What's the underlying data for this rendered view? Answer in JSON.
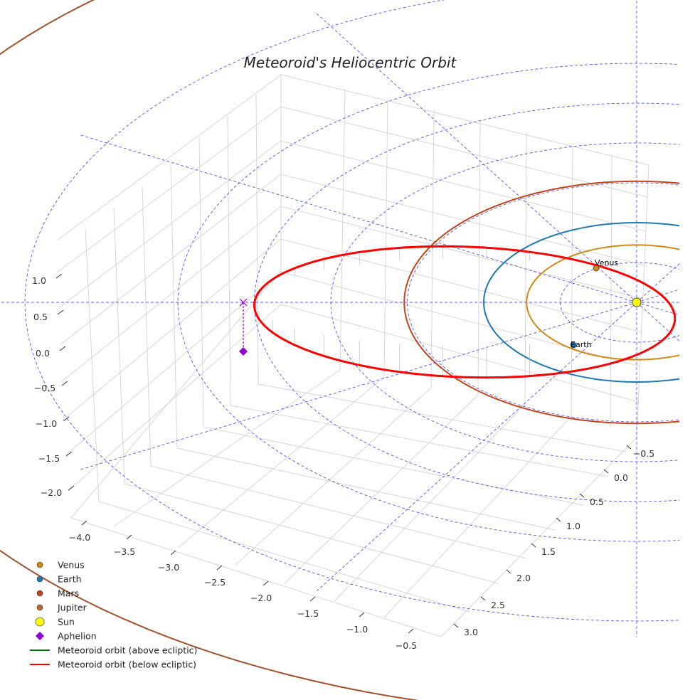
{
  "chart_data": {
    "type": "line3d",
    "title": "Meteoroid's Heliocentric Orbit",
    "xlabel": "",
    "ylabel": "",
    "zlabel": "",
    "x_ticks": [
      "−4.0",
      "−3.5",
      "−3.0",
      "−2.5",
      "−2.0",
      "−1.5",
      "−1.0",
      "−0.5"
    ],
    "y_ticks": [
      "−0.5",
      "0.0",
      "0.5",
      "1.0",
      "1.5",
      "2.0",
      "2.5",
      "3.0"
    ],
    "z_ticks": [
      "1.0",
      "0.5",
      "0.0",
      "−0.5",
      "−1.0",
      "−1.5",
      "−2.0"
    ],
    "x_range": [
      -4.2,
      -0.3
    ],
    "y_range": [
      -0.7,
      3.2
    ],
    "z_range": [
      -2.4,
      1.4
    ],
    "planets": [
      {
        "name": "Venus",
        "a_au": 0.72,
        "color": "#d08a12",
        "label": "Venus"
      },
      {
        "name": "Earth",
        "a_au": 1.0,
        "color": "#1f77b4",
        "label": "Earth"
      },
      {
        "name": "Mars",
        "a_au": 1.52,
        "color": "#c1441a"
      },
      {
        "name": "Jupiter",
        "a_au": 5.2,
        "color": "#a0522d"
      }
    ],
    "sun": {
      "name": "Sun",
      "x": 0,
      "y": 0,
      "z": 0,
      "color": "#ffff00"
    },
    "aphelion": {
      "name": "Aphelion",
      "x": -2.5,
      "y": 0.0,
      "z": -0.15,
      "color": "#9400d3"
    },
    "meteoroid_orbit": {
      "above_ecliptic": {
        "label": "Meteoroid orbit (above ecliptic)",
        "color": "#008000"
      },
      "below_ecliptic": {
        "label": "Meteoroid orbit (below ecliptic)",
        "color": "#ff0000"
      },
      "aphelion_au": 2.5,
      "perihelion_au": 0.25
    },
    "ecliptic_grid": {
      "rings_au": [
        0.5,
        1.0,
        1.5,
        2.0,
        2.5,
        3.0,
        4.0
      ],
      "color": "#5555ee"
    }
  },
  "legend": {
    "items": [
      {
        "label": "Venus",
        "marker": "circle",
        "color": "#d08a12"
      },
      {
        "label": "Earth",
        "marker": "circle",
        "color": "#1f77b4"
      },
      {
        "label": "Mars",
        "marker": "circle",
        "color": "#c1441a"
      },
      {
        "label": "Jupiter",
        "marker": "circle",
        "color": "#b5652f"
      },
      {
        "label": "Sun",
        "marker": "circle-large",
        "color": "#ffff00"
      },
      {
        "label": "Aphelion",
        "marker": "diamond",
        "color": "#9400d3"
      },
      {
        "label": "Meteoroid orbit (above ecliptic)",
        "marker": "line",
        "color": "#008000"
      },
      {
        "label": "Meteoroid orbit (below ecliptic)",
        "marker": "line",
        "color": "#ff0000"
      }
    ]
  }
}
